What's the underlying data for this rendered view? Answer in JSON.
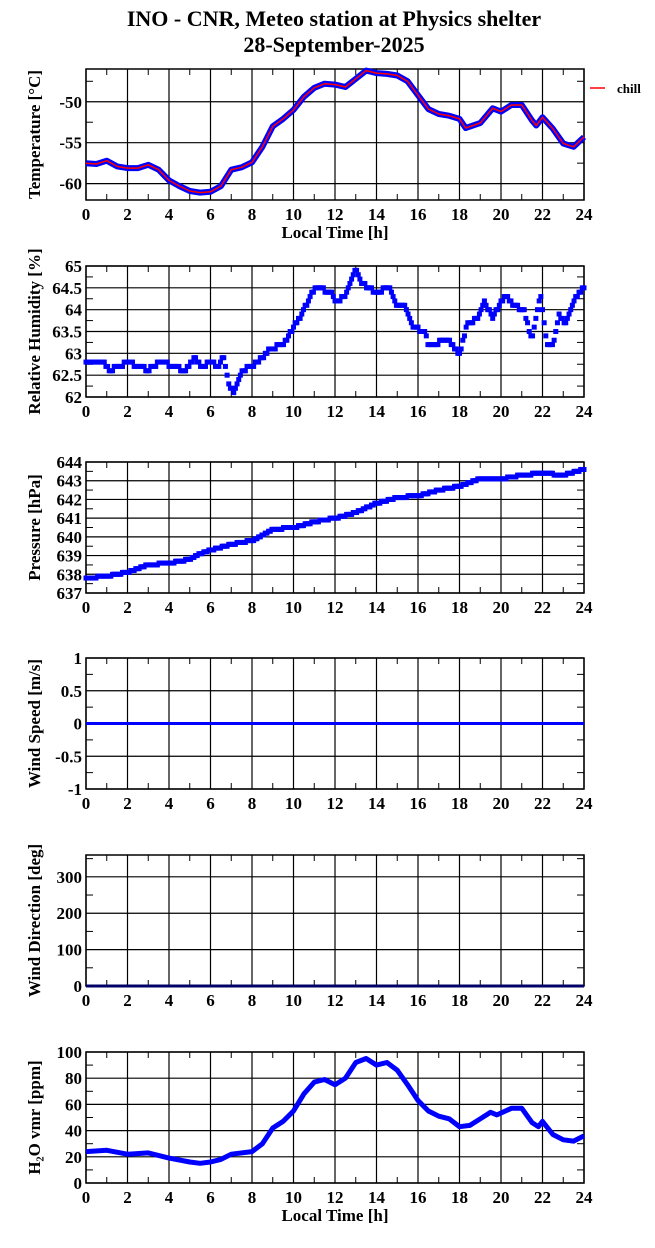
{
  "chart_data": {
    "type": "line",
    "title": "INO - CNR, Meteo station at Physics shelter",
    "subtitle": "28-September-2025",
    "legend": {
      "label": "chill",
      "color": "#ff0000",
      "placement": "right-outside-top"
    },
    "colors": {
      "series": "#0000ff",
      "overlay": "#ff0000",
      "frame": "#000000"
    },
    "xlim": [
      0,
      24
    ],
    "xticks": [
      "0",
      "2",
      "4",
      "6",
      "8",
      "10",
      "12",
      "14",
      "16",
      "18",
      "20",
      "22",
      "24"
    ],
    "panels": [
      {
        "id": "temperature",
        "ylabel": "Temperature [°C]",
        "xlabel": "Local Time [h]",
        "ylim": [
          -62,
          -46
        ],
        "yticks": [
          -60,
          -55,
          -50
        ],
        "ytick_labels": [
          "-60",
          "-55",
          "-50"
        ],
        "yminor": [
          -57.5,
          -52.5,
          -47.5
        ],
        "style": "line-red-on-blue",
        "x": [
          0,
          0.5,
          1,
          1.5,
          2,
          2.5,
          3,
          3.5,
          4,
          4.5,
          5,
          5.5,
          6,
          6.5,
          7,
          7.5,
          8,
          8.5,
          9,
          9.5,
          10,
          10.5,
          11,
          11.5,
          12,
          12.5,
          13,
          13.5,
          14,
          14.5,
          15,
          15.5,
          16,
          16.5,
          17,
          17.5,
          18,
          18.3,
          19,
          19.6,
          20,
          20.5,
          21,
          21.5,
          21.7,
          22,
          22.5,
          23,
          23.5,
          24
        ],
        "y": [
          -57.5,
          -57.6,
          -57.2,
          -57.9,
          -58.1,
          -58.1,
          -57.7,
          -58.3,
          -59.6,
          -60.3,
          -60.9,
          -61.1,
          -61.0,
          -60.3,
          -58.3,
          -58.0,
          -57.4,
          -55.5,
          -53.0,
          -52.1,
          -51.0,
          -49.4,
          -48.3,
          -47.8,
          -47.9,
          -48.2,
          -47.2,
          -46.2,
          -46.5,
          -46.6,
          -46.8,
          -47.5,
          -49.2,
          -50.9,
          -51.5,
          -51.7,
          -52.1,
          -53.2,
          -52.6,
          -50.8,
          -51.2,
          -50.4,
          -50.4,
          -52.3,
          -52.9,
          -51.9,
          -53.3,
          -55.1,
          -55.5,
          -54.3
        ]
      },
      {
        "id": "humidity",
        "ylabel": "Relative Humidity [%]",
        "xlabel": "",
        "ylim": [
          62,
          65
        ],
        "yticks": [
          62,
          62.5,
          63,
          63.5,
          64,
          64.5,
          65
        ],
        "ytick_labels": [
          "62",
          "62.5",
          "63",
          "63.5",
          "64",
          "64.5",
          "65"
        ],
        "yminor": [
          62.25,
          62.75,
          63.25,
          63.75,
          64.25,
          64.75
        ],
        "style": "squares",
        "quantum": 0.1,
        "x": [
          0,
          0.9,
          1.1,
          1.6,
          2,
          2.6,
          3,
          3.2,
          3.6,
          4.3,
          4.8,
          5.2,
          5.6,
          6,
          6.4,
          6.6,
          6.9,
          7.1,
          7.5,
          8,
          8.5,
          8.8,
          9.5,
          10,
          10.4,
          10.8,
          11.1,
          11.8,
          12,
          12.5,
          13,
          13.3,
          14,
          14.6,
          15,
          15.4,
          15.8,
          16.3,
          16.5,
          17.5,
          18,
          18.4,
          18.9,
          19.2,
          19.6,
          20,
          20.3,
          20.6,
          21.1,
          21.5,
          21.9,
          22.2,
          22.5,
          22.8,
          23.1,
          23.5,
          24
        ],
        "y": [
          62.8,
          62.8,
          62.6,
          62.7,
          62.8,
          62.7,
          62.6,
          62.7,
          62.8,
          62.7,
          62.6,
          62.9,
          62.7,
          62.8,
          62.7,
          63.0,
          62.3,
          62.1,
          62.6,
          62.7,
          62.9,
          63.1,
          63.2,
          63.6,
          63.9,
          64.3,
          64.5,
          64.4,
          64.2,
          64.3,
          64.9,
          64.6,
          64.4,
          64.5,
          64.1,
          64.1,
          63.6,
          63.5,
          63.2,
          63.3,
          63.0,
          63.7,
          63.8,
          64.2,
          63.8,
          64.2,
          64.3,
          64.1,
          64.0,
          63.3,
          64.4,
          63.2,
          63.2,
          63.9,
          63.7,
          64.2,
          64.5
        ]
      },
      {
        "id": "pressure",
        "ylabel": "Pressure [hPa]",
        "xlabel": "",
        "ylim": [
          637,
          644
        ],
        "yticks": [
          637,
          638,
          639,
          640,
          641,
          642,
          643,
          644
        ],
        "ytick_labels": [
          "637",
          "638",
          "639",
          "640",
          "641",
          "642",
          "643",
          "644"
        ],
        "yminor": [
          637.5,
          638.5,
          639.5,
          640.5,
          641.5,
          642.5,
          643.5
        ],
        "style": "squares",
        "quantum": 0.1,
        "x": [
          0,
          1,
          2,
          3,
          4,
          5,
          5.5,
          6,
          7,
          8,
          9,
          10,
          11,
          12,
          13,
          14,
          15,
          16,
          17,
          18,
          19,
          20,
          21,
          22,
          23,
          24
        ],
        "y": [
          637.8,
          637.9,
          638.1,
          638.5,
          638.6,
          638.8,
          639.1,
          639.3,
          639.6,
          639.8,
          640.4,
          640.5,
          640.8,
          641.0,
          641.3,
          641.8,
          642.1,
          642.2,
          642.5,
          642.7,
          643.1,
          643.1,
          643.3,
          643.4,
          643.3,
          643.6
        ]
      },
      {
        "id": "wind-speed",
        "ylabel": "Wind Speed [m/s]",
        "xlabel": "",
        "ylim": [
          -1,
          1
        ],
        "yticks": [
          -1,
          -0.5,
          0,
          0.5,
          1
        ],
        "ytick_labels": [
          "-1",
          "-0.5",
          "0",
          "0.5",
          "1"
        ],
        "yminor": [
          -0.75,
          -0.25,
          0.25,
          0.75
        ],
        "style": "line-blue",
        "x": [
          0,
          24
        ],
        "y": [
          0,
          0
        ]
      },
      {
        "id": "wind-direction",
        "ylabel": "Wind Direction [deg]",
        "xlabel": "",
        "ylim": [
          0,
          360
        ],
        "yticks": [
          0,
          100,
          200,
          300
        ],
        "ytick_labels": [
          "0",
          "100",
          "200",
          "300"
        ],
        "yminor": [
          50,
          150,
          250,
          350
        ],
        "style": "line-dark",
        "x": [
          0,
          24
        ],
        "y": [
          0,
          0
        ]
      },
      {
        "id": "h2o-vmr",
        "ylabel": "H₂O vmr [ppm]",
        "xlabel": "Local Time [h]",
        "ylim": [
          0,
          100
        ],
        "yticks": [
          0,
          20,
          40,
          60,
          80,
          100
        ],
        "ytick_labels": [
          "0",
          "20",
          "40",
          "60",
          "80",
          "100"
        ],
        "yminor": [
          10,
          30,
          50,
          70,
          90
        ],
        "style": "line-blue-thick",
        "x": [
          0,
          1,
          2,
          3,
          4,
          5,
          5.5,
          6,
          6.5,
          7,
          8,
          8.5,
          9,
          9.5,
          10,
          10.5,
          11,
          11.5,
          12,
          12.5,
          13,
          13.5,
          14,
          14.5,
          15,
          15.5,
          16,
          16.5,
          17,
          17.5,
          18,
          18.5,
          19,
          19.5,
          19.8,
          20.5,
          21,
          21.5,
          21.8,
          22,
          22.5,
          23,
          23.5,
          24
        ],
        "y": [
          24,
          25,
          22,
          23,
          19,
          16,
          15,
          16,
          18,
          22,
          24,
          30,
          42,
          47,
          55,
          68,
          77,
          79,
          75,
          80,
          92,
          95,
          90,
          92,
          86,
          75,
          63,
          55,
          51,
          49,
          43,
          44,
          49,
          54,
          52,
          57,
          57,
          46,
          43,
          47,
          37,
          33,
          32,
          36
        ]
      }
    ]
  }
}
